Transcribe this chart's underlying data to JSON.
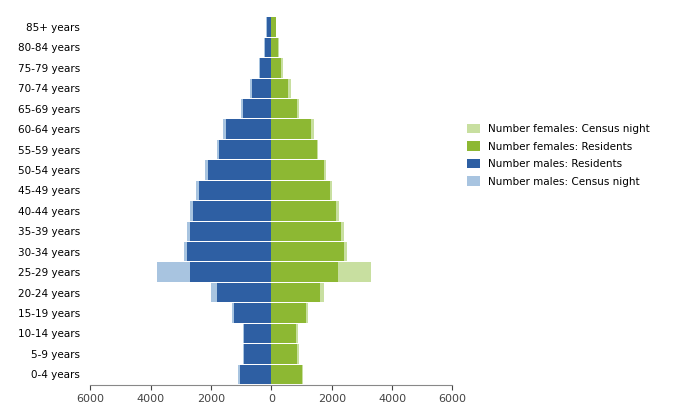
{
  "age_groups": [
    "0-4 years",
    "5-9 years",
    "10-14 years",
    "15-19 years",
    "20-24 years",
    "25-29 years",
    "30-34 years",
    "35-39 years",
    "40-44 years",
    "45-49 years",
    "50-54 years",
    "55-59 years",
    "60-64 years",
    "65-69 years",
    "70-74 years",
    "75-79 years",
    "80-84 years",
    "85+ years"
  ],
  "males_residents": [
    1050,
    900,
    900,
    1250,
    1800,
    2700,
    2800,
    2700,
    2600,
    2400,
    2100,
    1750,
    1500,
    950,
    650,
    380,
    220,
    160
  ],
  "males_census_night": [
    1100,
    950,
    950,
    1300,
    2000,
    3800,
    2900,
    2800,
    2700,
    2500,
    2200,
    1800,
    1600,
    1000,
    700,
    420,
    250,
    180
  ],
  "females_residents": [
    1000,
    850,
    820,
    1150,
    1600,
    2200,
    2400,
    2300,
    2150,
    1950,
    1750,
    1500,
    1300,
    850,
    550,
    330,
    210,
    140
  ],
  "females_census_night": [
    1050,
    900,
    870,
    1200,
    1750,
    3300,
    2500,
    2400,
    2250,
    2000,
    1800,
    1560,
    1400,
    920,
    650,
    380,
    240,
    160
  ],
  "color_males_residents": "#2E5FA3",
  "color_males_census_night": "#A8C4E0",
  "color_females_residents": "#8DB833",
  "color_females_census_night": "#C8DFA0",
  "xlim": [
    -6000,
    6000
  ],
  "xticks": [
    -6000,
    -4000,
    -2000,
    0,
    2000,
    4000,
    6000
  ],
  "xticklabels": [
    "6000",
    "4000",
    "2000",
    "0",
    "2000",
    "4000",
    "6000"
  ],
  "legend_labels": [
    "Number females: Census night",
    "Number females: Residents",
    "Number males: Residents",
    "Number males: Census night"
  ],
  "legend_colors": [
    "#C8DFA0",
    "#8DB833",
    "#2E5FA3",
    "#A8C4E0"
  ],
  "background_color": "#ffffff",
  "bar_height": 0.95,
  "ylabel_fontsize": 7.5,
  "xlabel_fontsize": 8,
  "legend_fontsize": 7.5
}
